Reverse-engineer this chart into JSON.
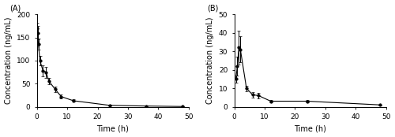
{
  "panel_A": {
    "label": "(A)",
    "x": [
      0.083,
      0.25,
      0.5,
      1,
      2,
      3,
      4,
      6,
      8,
      12,
      24,
      36,
      48
    ],
    "y": [
      170,
      160,
      135,
      100,
      78,
      75,
      55,
      38,
      22,
      13,
      3,
      1.5,
      0.5
    ],
    "yerr": [
      12,
      15,
      12,
      10,
      12,
      12,
      7,
      6,
      4,
      2.5,
      0.8,
      0.4,
      0.2
    ],
    "curve_x": [
      0.083,
      0.25,
      0.5,
      1,
      2,
      3,
      4,
      6,
      8,
      12,
      24,
      36,
      48
    ],
    "xlabel": "Time (h)",
    "ylabel": "Concentration (ng/mL)",
    "xlim": [
      0,
      50
    ],
    "ylim": [
      0,
      200
    ],
    "xticks": [
      0,
      10,
      20,
      30,
      40,
      50
    ],
    "yticks": [
      0,
      50,
      100,
      150,
      200
    ]
  },
  "panel_B": {
    "label": "(B)",
    "x": [
      0.5,
      1,
      1.5,
      2,
      4,
      6,
      8,
      12,
      24,
      48
    ],
    "y": [
      15,
      22,
      32,
      31,
      10,
      6.5,
      6,
      3,
      3,
      1
    ],
    "yerr": [
      2,
      5,
      9,
      7,
      1.5,
      1.5,
      1.5,
      0.8,
      0.8,
      0.2
    ],
    "xlabel": "Time (h)",
    "ylabel": "Concentration (ng/mL)",
    "xlim": [
      0,
      50
    ],
    "ylim": [
      0,
      50
    ],
    "xticks": [
      0,
      10,
      20,
      30,
      40,
      50
    ],
    "yticks": [
      0,
      10,
      20,
      30,
      40,
      50
    ]
  },
  "line_color": "#000000",
  "marker": "o",
  "markersize": 2.5,
  "markerfacecolor": "#000000",
  "linewidth": 0.8,
  "capsize": 1.5,
  "elinewidth": 0.7,
  "background_color": "#ffffff",
  "label_fontsize": 7,
  "tick_fontsize": 6.5
}
